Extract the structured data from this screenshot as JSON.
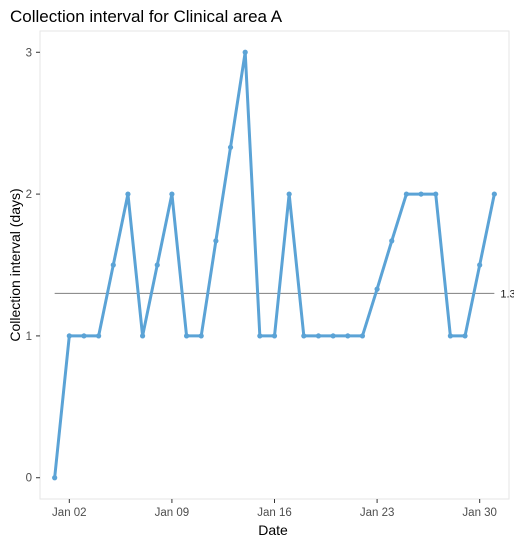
{
  "chart_data": {
    "type": "line",
    "title": "Collection interval for Clinical area A",
    "xlabel": "Date",
    "ylabel": "Collection interval (days)",
    "x": [
      "Jan 01",
      "Jan 02",
      "Jan 03",
      "Jan 04",
      "Jan 05",
      "Jan 06",
      "Jan 07",
      "Jan 08",
      "Jan 09",
      "Jan 10",
      "Jan 11",
      "Jan 12",
      "Jan 13",
      "Jan 14",
      "Jan 15",
      "Jan 16",
      "Jan 17",
      "Jan 18",
      "Jan 19",
      "Jan 20",
      "Jan 21",
      "Jan 22",
      "Jan 23",
      "Jan 24",
      "Jan 25",
      "Jan 26",
      "Jan 27",
      "Jan 28",
      "Jan 29",
      "Jan 30",
      "Jan 31"
    ],
    "series": [
      {
        "values": [
          0,
          1,
          1,
          1,
          1.5,
          2,
          1,
          1.5,
          2,
          1,
          1,
          1.67,
          2.33,
          3,
          1,
          1,
          2,
          1,
          1,
          1,
          1,
          1,
          1.33,
          1.67,
          2,
          2,
          2,
          1,
          1,
          1.5,
          2
        ],
        "color": "#5BA3D6"
      }
    ],
    "reference_line": {
      "value": 1.3,
      "label": "1.3",
      "color": "#7f7f7f"
    },
    "x_ticks": [
      "Jan 02",
      "Jan 09",
      "Jan 16",
      "Jan 23",
      "Jan 30"
    ],
    "y_ticks": [
      "0",
      "1",
      "2",
      "3"
    ],
    "xlim": [
      "Dec 31",
      "Feb 01"
    ],
    "ylim": [
      -0.15,
      3.15
    ],
    "grid": false,
    "panel_border": true,
    "marker_color": "#5BA3D6"
  }
}
